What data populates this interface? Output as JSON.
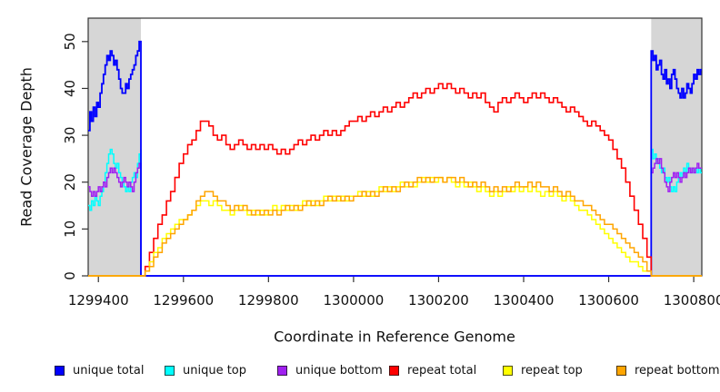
{
  "chart_data": {
    "type": "line",
    "title": "",
    "xlabel": "Coordinate in Reference Genome",
    "ylabel": "Read Coverage Depth",
    "xlim": [
      1299376,
      1300819
    ],
    "ylim": [
      0,
      55
    ],
    "xticks": [
      1299400,
      1299600,
      1299800,
      1300000,
      1300200,
      1300400,
      1300600,
      1300800
    ],
    "yticks": [
      0,
      10,
      20,
      30,
      40,
      50
    ],
    "grid": false,
    "step_interpolation": true,
    "legend_position": "bottom",
    "axis_color": "#333333",
    "shade_color": "#d6d6d6",
    "shaded_regions": [
      {
        "from": 1299376,
        "to": 1299500
      },
      {
        "from": 1300700,
        "to": 1300819
      }
    ],
    "legend": [
      {
        "label": "unique total",
        "color": "#0000FF"
      },
      {
        "label": "unique top",
        "color": "#00FFFF"
      },
      {
        "label": "unique bottom",
        "color": "#A020F0"
      },
      {
        "label": "repeat total",
        "color": "#FF0000"
      },
      {
        "label": "repeat top",
        "color": "#FFFF00"
      },
      {
        "label": "repeat bottom",
        "color": "#FFA500"
      }
    ],
    "series": [
      {
        "name": "unique top",
        "color": "#00FFFF",
        "width": 1.5,
        "segments": [
          {
            "x0": 1299376,
            "dx": 4,
            "values": [
              15,
              14,
              16,
              15,
              17,
              16,
              15,
              17,
              18,
              20,
              22,
              24,
              26,
              27,
              26,
              24,
              23,
              24,
              22,
              21,
              20,
              19,
              18,
              19,
              18,
              20,
              21,
              22,
              21,
              24,
              26
            ]
          },
          {
            "x0": 1299500,
            "dx": 0,
            "values": [
              27,
              0
            ]
          },
          {
            "x0": 1300700,
            "dx": 0,
            "values": [
              0,
              27
            ]
          },
          {
            "x0": 1300704,
            "dx": 4,
            "values": [
              25,
              26,
              24,
              25,
              23,
              22,
              23,
              21,
              20,
              21,
              19,
              18,
              19,
              18,
              20,
              21,
              22,
              21,
              23,
              22,
              24,
              23,
              22,
              23,
              22,
              23,
              22,
              23,
              22
            ]
          },
          {
            "x0": 1300819,
            "dx": 0,
            "values": [
              22
            ]
          }
        ]
      },
      {
        "name": "unique bottom",
        "color": "#A020F0",
        "width": 1.5,
        "segments": [
          {
            "x0": 1299376,
            "dx": 4,
            "values": [
              19,
              18,
              17,
              18,
              17,
              18,
              19,
              18,
              19,
              20,
              19,
              21,
              22,
              23,
              22,
              23,
              22,
              21,
              20,
              19,
              20,
              21,
              20,
              19,
              20,
              19,
              18,
              20,
              22,
              23,
              24
            ]
          },
          {
            "x0": 1299500,
            "dx": 0,
            "values": [
              24,
              0
            ]
          },
          {
            "x0": 1300700,
            "dx": 0,
            "values": [
              0,
              22
            ]
          },
          {
            "x0": 1300704,
            "dx": 4,
            "values": [
              23,
              24,
              25,
              24,
              25,
              23,
              22,
              20,
              19,
              18,
              20,
              21,
              22,
              21,
              22,
              21,
              20,
              21,
              22,
              21,
              22,
              23,
              22,
              23,
              22,
              23,
              24,
              23,
              23
            ]
          },
          {
            "x0": 1300819,
            "dx": 0,
            "values": [
              23
            ]
          }
        ]
      },
      {
        "name": "unique total",
        "color": "#0000FF",
        "width": 1.8,
        "segments": [
          {
            "x0": 1299376,
            "dx": 4,
            "values": [
              31,
              35,
              33,
              36,
              34,
              37,
              36,
              39,
              41,
              43,
              45,
              47,
              46,
              48,
              47,
              45,
              46,
              44,
              42,
              40,
              39,
              39,
              41,
              40,
              42,
              43,
              44,
              45,
              47,
              48,
              50
            ]
          },
          {
            "x0": 1299500,
            "dx": 0,
            "values": [
              50,
              0
            ]
          },
          {
            "x0": 1300700,
            "dx": 0,
            "values": [
              0,
              48
            ]
          },
          {
            "x0": 1300704,
            "dx": 4,
            "values": [
              46,
              47,
              44,
              45,
              46,
              43,
              42,
              44,
              41,
              42,
              40,
              43,
              44,
              42,
              40,
              39,
              38,
              40,
              38,
              39,
              41,
              40,
              39,
              41,
              43,
              42,
              44,
              43,
              44
            ]
          },
          {
            "x0": 1300819,
            "dx": 0,
            "values": [
              44
            ]
          }
        ]
      },
      {
        "name": "repeat total",
        "color": "#FF0000",
        "width": 1.6,
        "segments": [
          {
            "x0": 1299376,
            "dx": 0,
            "values": [
              0
            ]
          },
          {
            "x0": 1299500,
            "dx": 10,
            "values": [
              0,
              2,
              5,
              8,
              11,
              13,
              16,
              18,
              21,
              24,
              26,
              28,
              29,
              31,
              33,
              33,
              32,
              30,
              29,
              30,
              28,
              27,
              28,
              29,
              28,
              27,
              28,
              27,
              28,
              27,
              28,
              27,
              26,
              27,
              26,
              27,
              28,
              29,
              28,
              29,
              30,
              29,
              30,
              31,
              30,
              31,
              30,
              31,
              32,
              33,
              33,
              34,
              33,
              34,
              35,
              34,
              35,
              36,
              35,
              36,
              37,
              36,
              37,
              38,
              39,
              38,
              39,
              40,
              39,
              40,
              41,
              40,
              41,
              40,
              39,
              40,
              39,
              38,
              39,
              38,
              39,
              37,
              36,
              35,
              37,
              38,
              37,
              38,
              39,
              38,
              37,
              38,
              39,
              38,
              39,
              38,
              37,
              38,
              37,
              36,
              35,
              36,
              35,
              34,
              33,
              32,
              33,
              32,
              31,
              30,
              29,
              27,
              25,
              23,
              20,
              17,
              14,
              11,
              8,
              4,
              0
            ]
          },
          {
            "x0": 1300819,
            "dx": 0,
            "values": [
              0
            ]
          }
        ]
      },
      {
        "name": "repeat top",
        "color": "#FFFF00",
        "width": 1.5,
        "segments": [
          {
            "x0": 1299376,
            "dx": 0,
            "values": [
              0
            ]
          },
          {
            "x0": 1299500,
            "dx": 10,
            "values": [
              0,
              1,
              3,
              5,
              6,
              8,
              9,
              10,
              11,
              12,
              12,
              13,
              14,
              15,
              16,
              16,
              15,
              16,
              15,
              14,
              14,
              13,
              14,
              15,
              14,
              13,
              14,
              13,
              14,
              13,
              14,
              15,
              14,
              15,
              14,
              15,
              14,
              15,
              16,
              15,
              16,
              15,
              16,
              17,
              16,
              17,
              16,
              17,
              16,
              17,
              17,
              18,
              17,
              18,
              17,
              18,
              19,
              18,
              19,
              18,
              19,
              20,
              19,
              20,
              19,
              20,
              21,
              20,
              21,
              20,
              21,
              20,
              21,
              20,
              19,
              20,
              19,
              20,
              19,
              18,
              19,
              18,
              17,
              18,
              17,
              18,
              19,
              18,
              19,
              18,
              19,
              18,
              19,
              18,
              17,
              18,
              17,
              18,
              17,
              16,
              17,
              16,
              15,
              14,
              14,
              13,
              12,
              11,
              10,
              9,
              8,
              7,
              6,
              5,
              4,
              3,
              3,
              2,
              1,
              1,
              0
            ]
          },
          {
            "x0": 1300819,
            "dx": 0,
            "values": [
              0
            ]
          }
        ]
      },
      {
        "name": "repeat bottom",
        "color": "#FFA500",
        "width": 1.5,
        "segments": [
          {
            "x0": 1299376,
            "dx": 0,
            "values": [
              0
            ]
          },
          {
            "x0": 1299500,
            "dx": 10,
            "values": [
              0,
              1,
              2,
              4,
              5,
              7,
              8,
              9,
              10,
              11,
              12,
              13,
              14,
              16,
              17,
              18,
              18,
              17,
              16,
              16,
              15,
              14,
              15,
              14,
              15,
              14,
              13,
              14,
              13,
              14,
              13,
              14,
              13,
              14,
              15,
              14,
              15,
              14,
              15,
              16,
              15,
              16,
              15,
              16,
              17,
              16,
              17,
              16,
              17,
              16,
              17,
              17,
              18,
              17,
              18,
              17,
              18,
              19,
              18,
              19,
              18,
              19,
              20,
              19,
              20,
              21,
              20,
              21,
              20,
              21,
              21,
              20,
              21,
              21,
              20,
              21,
              20,
              19,
              20,
              19,
              20,
              19,
              18,
              19,
              18,
              19,
              18,
              19,
              20,
              19,
              19,
              20,
              19,
              20,
              19,
              19,
              18,
              19,
              18,
              17,
              18,
              17,
              16,
              16,
              15,
              15,
              14,
              13,
              12,
              11,
              11,
              10,
              9,
              8,
              7,
              6,
              5,
              4,
              3,
              1,
              0
            ]
          },
          {
            "x0": 1300819,
            "dx": 0,
            "values": [
              0
            ]
          }
        ]
      }
    ]
  }
}
